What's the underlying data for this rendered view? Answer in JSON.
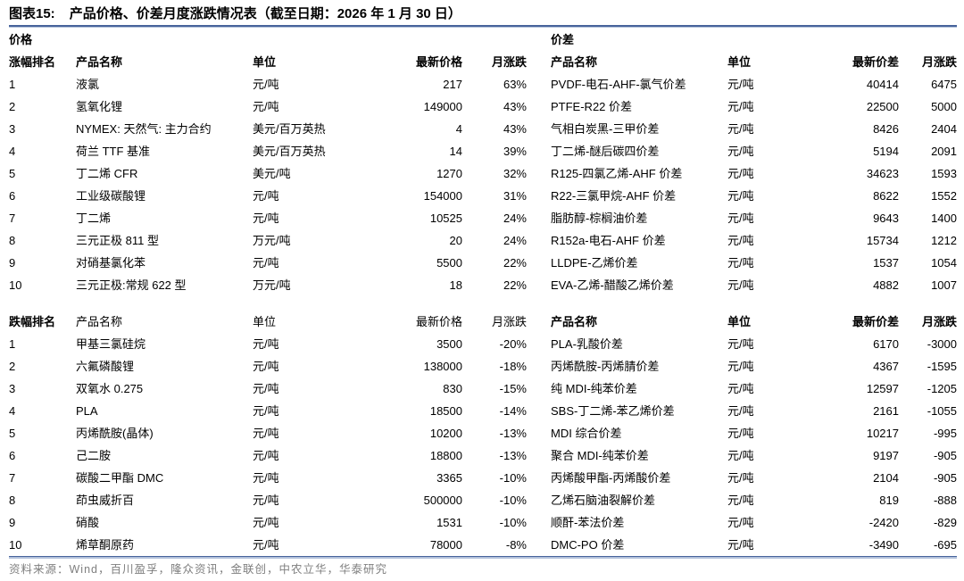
{
  "title": {
    "prefix": "图表15:",
    "text": "产品价格、价差月度涨跌情况表（截至日期：2026 年 1 月 30 日）"
  },
  "source_note": "资料来源：Wind，百川盈孚，隆众资讯，金联创，中农立华，华泰研究",
  "colors": {
    "rule_dark": "#47639b",
    "rule_light": "#b3c2db",
    "source_text": "#7f7f7f"
  },
  "price_section": {
    "label": "价格",
    "gainers_headers": [
      "涨幅排名",
      "产品名称",
      "单位",
      "最新价格",
      "月涨跌"
    ],
    "gainers_rows": [
      [
        "1",
        "液氯",
        "元/吨",
        "217",
        "63%"
      ],
      [
        "2",
        "氢氧化锂",
        "元/吨",
        "149000",
        "43%"
      ],
      [
        "3",
        "NYMEX: 天然气: 主力合约",
        "美元/百万英热",
        "4",
        "43%"
      ],
      [
        "4",
        "荷兰 TTF 基准",
        "美元/百万英热",
        "14",
        "39%"
      ],
      [
        "5",
        "丁二烯 CFR",
        "美元/吨",
        "1270",
        "32%"
      ],
      [
        "6",
        "工业级碳酸锂",
        "元/吨",
        "154000",
        "31%"
      ],
      [
        "7",
        "丁二烯",
        "元/吨",
        "10525",
        "24%"
      ],
      [
        "8",
        "三元正极 811 型",
        "万元/吨",
        "20",
        "24%"
      ],
      [
        "9",
        "对硝基氯化苯",
        "元/吨",
        "5500",
        "22%"
      ],
      [
        "10",
        "三元正极:常规 622 型",
        "万元/吨",
        "18",
        "22%"
      ]
    ],
    "losers_headers": [
      "跌幅排名",
      "产品名称",
      "单位",
      "最新价格",
      "月涨跌"
    ],
    "losers_rows": [
      [
        "1",
        "甲基三氯硅烷",
        "元/吨",
        "3500",
        "-20%"
      ],
      [
        "2",
        "六氟磷酸锂",
        "元/吨",
        "138000",
        "-18%"
      ],
      [
        "3",
        "双氧水 0.275",
        "元/吨",
        "830",
        "-15%"
      ],
      [
        "4",
        "PLA",
        "元/吨",
        "18500",
        "-14%"
      ],
      [
        "5",
        "丙烯酰胺(晶体)",
        "元/吨",
        "10200",
        "-13%"
      ],
      [
        "6",
        "己二胺",
        "元/吨",
        "18800",
        "-13%"
      ],
      [
        "7",
        "碳酸二甲酯 DMC",
        "元/吨",
        "3365",
        "-10%"
      ],
      [
        "8",
        "茚虫威折百",
        "元/吨",
        "500000",
        "-10%"
      ],
      [
        "9",
        "硝酸",
        "元/吨",
        "1531",
        "-10%"
      ],
      [
        "10",
        "烯草酮原药",
        "元/吨",
        "78000",
        "-8%"
      ]
    ]
  },
  "spread_section": {
    "label": "价差",
    "gainers_headers": [
      "产品名称",
      "单位",
      "最新价差",
      "月涨跌"
    ],
    "gainers_rows": [
      [
        "PVDF-电石-AHF-氯气价差",
        "元/吨",
        "40414",
        "6475"
      ],
      [
        "PTFE-R22 价差",
        "元/吨",
        "22500",
        "5000"
      ],
      [
        "气相白炭黑-三甲价差",
        "元/吨",
        "8426",
        "2404"
      ],
      [
        "丁二烯-醚后碳四价差",
        "元/吨",
        "5194",
        "2091"
      ],
      [
        "R125-四氯乙烯-AHF 价差",
        "元/吨",
        "34623",
        "1593"
      ],
      [
        "R22-三氯甲烷-AHF 价差",
        "元/吨",
        "8622",
        "1552"
      ],
      [
        "脂肪醇-棕榈油价差",
        "元/吨",
        "9643",
        "1400"
      ],
      [
        "R152a-电石-AHF 价差",
        "元/吨",
        "15734",
        "1212"
      ],
      [
        "LLDPE-乙烯价差",
        "元/吨",
        "1537",
        "1054"
      ],
      [
        "EVA-乙烯-醋酸乙烯价差",
        "元/吨",
        "4882",
        "1007"
      ]
    ],
    "losers_headers": [
      "产品名称",
      "单位",
      "最新价差",
      "月涨跌"
    ],
    "losers_rows": [
      [
        "PLA-乳酸价差",
        "元/吨",
        "6170",
        "-3000"
      ],
      [
        "丙烯酰胺-丙烯腈价差",
        "元/吨",
        "4367",
        "-1595"
      ],
      [
        "纯 MDI-纯苯价差",
        "元/吨",
        "12597",
        "-1205"
      ],
      [
        "SBS-丁二烯-苯乙烯价差",
        "元/吨",
        "2161",
        "-1055"
      ],
      [
        "MDI 综合价差",
        "元/吨",
        "10217",
        "-995"
      ],
      [
        "聚合 MDI-纯苯价差",
        "元/吨",
        "9197",
        "-905"
      ],
      [
        "丙烯酸甲酯-丙烯酸价差",
        "元/吨",
        "2104",
        "-905"
      ],
      [
        "乙烯石脑油裂解价差",
        "元/吨",
        "819",
        "-888"
      ],
      [
        "顺酐-苯法价差",
        "元/吨",
        "-2420",
        "-829"
      ],
      [
        "DMC-PO 价差",
        "元/吨",
        "-3490",
        "-695"
      ]
    ]
  }
}
